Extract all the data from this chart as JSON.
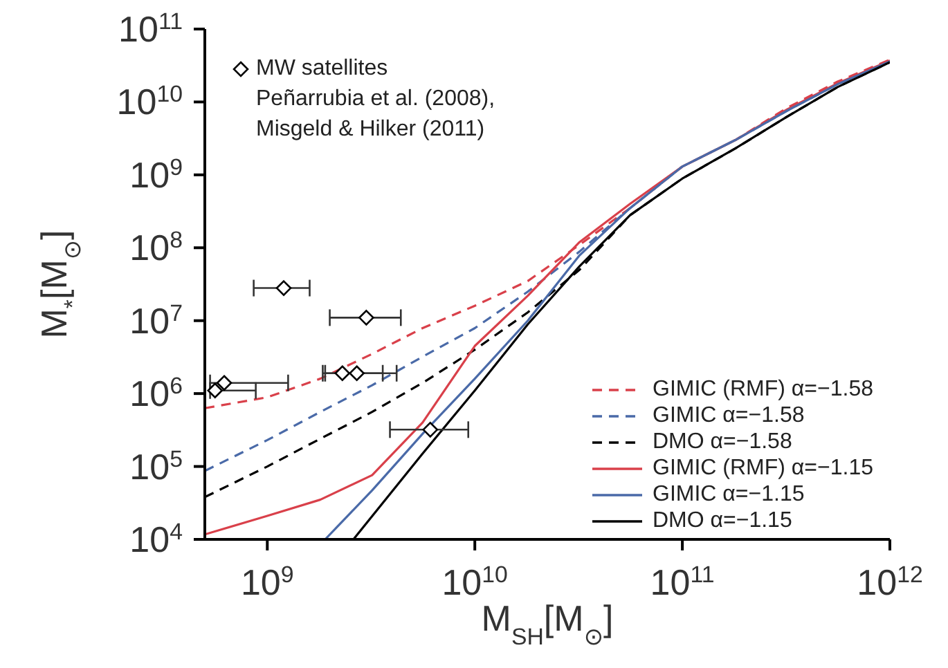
{
  "chart_data": {
    "type": "line",
    "xlabel": "M$_{SH}$[M$_{⊙}$]",
    "ylabel": "M$_{*}$[M$_{⊙}$]",
    "log": "xy",
    "grid": false,
    "legend": "bottom right",
    "xlim": [
      500000000.0,
      1000000000000.0
    ],
    "ylim": [
      10000.0,
      100000000000.0
    ],
    "xticks": [
      {
        "value": 1000000000.0,
        "label": "10$^{9}$"
      },
      {
        "value": 10000000000.0,
        "label": "10$^{10}$"
      },
      {
        "value": 100000000000.0,
        "label": "10$^{11}$"
      },
      {
        "value": 1000000000000.0,
        "label": "10$^{12}$"
      }
    ],
    "yticks": [
      {
        "value": 10000.0,
        "label": "10$^{4}$"
      },
      {
        "value": 100000.0,
        "label": "10$^{5}$"
      },
      {
        "value": 1000000.0,
        "label": "10$^{6}$"
      },
      {
        "value": 10000000.0,
        "label": "10$^{7}$"
      },
      {
        "value": 100000000.0,
        "label": "10$^{8}$"
      },
      {
        "value": 1000000000.0,
        "label": "10$^{9}$"
      },
      {
        "value": 10000000000.0,
        "label": "10$^{10}$"
      },
      {
        "value": 100000000000.0,
        "label": "10$^{11}$"
      }
    ],
    "annotations": [
      "Peñarrubia et al. (2008),",
      "Misgeld & Hilker (2011)"
    ],
    "series": [
      {
        "name": "GIMIC (RMF) α=−1.58",
        "color": "#d9404a",
        "line_style": "dashed",
        "marker": "none",
        "x": [
          500000000.0,
          1000000000.0,
          1800000000.0,
          3200000000.0,
          5600000000.0,
          10000000000.0,
          18000000000.0,
          32000000000.0,
          56000000000.0,
          100000000000.0,
          180000000000.0,
          320000000000.0,
          560000000000.0,
          1000000000000.0
        ],
        "values": [
          630000.0,
          890000.0,
          1600000.0,
          3500000.0,
          7900000.0,
          16000000.0,
          35000000.0,
          110000000.0,
          350000000.0,
          1300000000.0,
          3000000000.0,
          8300000000.0,
          19000000000.0,
          38000000000.0
        ]
      },
      {
        "name": "GIMIC α=−1.58",
        "color": "#4a6aa8",
        "line_style": "dashed",
        "marker": "none",
        "x": [
          500000000.0,
          1000000000.0,
          1800000000.0,
          3200000000.0,
          5600000000.0,
          10000000000.0,
          18000000000.0,
          32000000000.0,
          56000000000.0,
          100000000000.0,
          180000000000.0,
          320000000000.0,
          560000000000.0,
          1000000000000.0
        ],
        "values": [
          87000.0,
          230000.0,
          560000.0,
          1300000.0,
          3200000.0,
          7900000.0,
          25000000.0,
          89000000.0,
          350000000.0,
          1300000000.0,
          3000000000.0,
          7600000000.0,
          17500000000.0,
          36000000000.0
        ]
      },
      {
        "name": "DMO α=−1.58",
        "color": "#000000",
        "line_style": "dashed",
        "marker": "none",
        "x": [
          500000000.0,
          1000000000.0,
          1800000000.0,
          3200000000.0,
          5600000000.0,
          10000000000.0,
          18000000000.0,
          32000000000.0,
          56000000000.0,
          100000000000.0,
          180000000000.0,
          320000000000.0,
          560000000000.0,
          1000000000000.0
        ],
        "values": [
          38000.0,
          100000.0,
          240000.0,
          560000.0,
          1400000.0,
          4000000.0,
          13000000.0,
          50000000.0,
          280000000.0,
          890000000.0,
          2300000000.0,
          6300000000.0,
          16000000000.0,
          35000000000.0
        ]
      },
      {
        "name": "GIMIC (RMF) α=−1.15",
        "color": "#d9404a",
        "line_style": "solid",
        "marker": "none",
        "x": [
          500000000.0,
          1000000000.0,
          1800000000.0,
          3200000000.0,
          5600000000.0,
          10000000000.0,
          18000000000.0,
          32000000000.0,
          56000000000.0,
          100000000000.0,
          180000000000.0,
          320000000000.0,
          560000000000.0,
          1000000000000.0
        ],
        "values": [
          11700.0,
          21000.0,
          35000.0,
          76000.0,
          400000.0,
          4500000.0,
          22000000.0,
          120000000.0,
          400000000.0,
          1300000000.0,
          3000000000.0,
          7900000000.0,
          18000000000.0,
          37000000000.0
        ]
      },
      {
        "name": "GIMIC α=−1.15",
        "color": "#4a6aa8",
        "line_style": "solid",
        "marker": "none",
        "x": [
          1900000000.0,
          3200000000.0,
          5600000000.0,
          10000000000.0,
          18000000000.0,
          32000000000.0,
          56000000000.0,
          100000000000.0,
          180000000000.0,
          320000000000.0,
          560000000000.0,
          1000000000000.0
        ],
        "values": [
          10000.0,
          47000.0,
          280000.0,
          1600000.0,
          10000000.0,
          79000000.0,
          350000000.0,
          1300000000.0,
          3000000000.0,
          7600000000.0,
          17500000000.0,
          36000000000.0
        ]
      },
      {
        "name": "DMO α=−1.15",
        "color": "#000000",
        "line_style": "solid",
        "marker": "none",
        "x": [
          2600000000.0,
          5600000000.0,
          10000000000.0,
          18000000000.0,
          32000000000.0,
          56000000000.0,
          100000000000.0,
          180000000000.0,
          320000000000.0,
          560000000000.0,
          1000000000000.0
        ],
        "values": [
          10000.0,
          150000.0,
          1100000.0,
          8900000.0,
          56000000.0,
          280000000.0,
          890000000.0,
          2300000000.0,
          6300000000.0,
          16000000000.0,
          35000000000.0
        ]
      },
      {
        "name": "MW satellites",
        "type": "scatter",
        "color": "#000000",
        "marker": "diamond",
        "x": [
          620000000.0,
          560000000.0,
          2300000000.0,
          2700000000.0,
          6100000000.0,
          1200000000.0,
          3000000000.0
        ],
        "values": [
          1400000.0,
          1100000.0,
          1900000.0,
          1900000.0,
          320000.0,
          28000000.0,
          11000000.0
        ],
        "xerrors": [
          [
            530000000.0,
            1260000000.0
          ],
          [
            530000000.0,
            880000000.0
          ],
          [
            1850000000.0,
            3600000000.0
          ],
          [
            1900000000.0,
            4200000000.0
          ],
          [
            3900000000.0,
            9300000000.0
          ],
          [
            860000000.0,
            1600000000.0
          ],
          [
            2000000000.0,
            4400000000.0
          ]
        ]
      }
    ]
  }
}
